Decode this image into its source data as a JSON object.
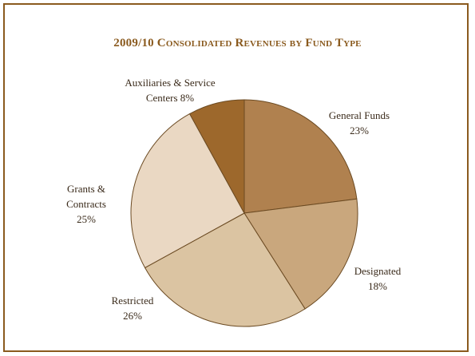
{
  "chart_data": {
    "type": "pie",
    "title": "2009/10 Consolidated Revenues by Fund Type",
    "slices": [
      {
        "label": "General Funds",
        "value": 23,
        "value_label": "23%",
        "color": "#b0814f"
      },
      {
        "label": "Designated",
        "value": 18,
        "value_label": "18%",
        "color": "#c9a77d"
      },
      {
        "label": "Restricted",
        "value": 26,
        "value_label": "26%",
        "color": "#dbc4a2"
      },
      {
        "label": "Grants & Contracts",
        "value": 25,
        "value_label": "25%",
        "color": "#ead8c3"
      },
      {
        "label": "Auxiliaries & Service Centers",
        "value": 8,
        "value_label": "8%",
        "color": "#9d682c"
      }
    ]
  }
}
